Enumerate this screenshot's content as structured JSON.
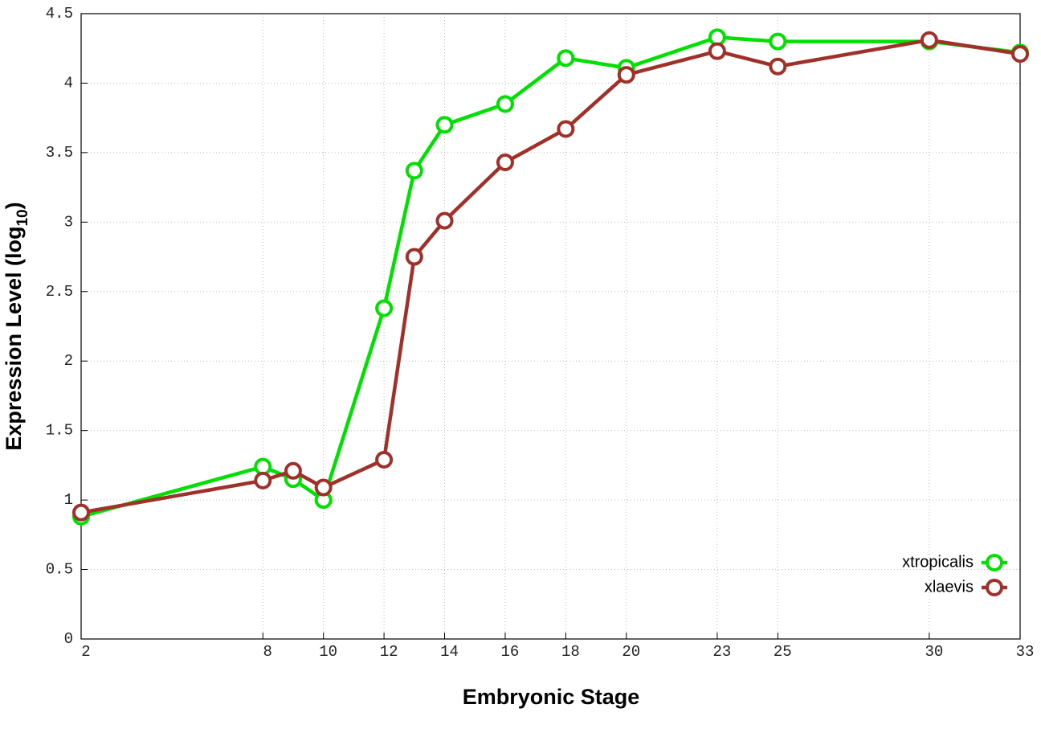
{
  "chart_data": {
    "type": "line",
    "xlabel": "Embryonic Stage",
    "ylabel": [
      "Expression Level (log",
      "10",
      ")"
    ],
    "x": [
      2,
      8,
      9,
      10,
      12,
      13,
      14,
      16,
      18,
      20,
      23,
      25,
      30,
      33
    ],
    "series": [
      {
        "name": "xtropicalis",
        "color": "#00e000",
        "values": [
          0.88,
          1.24,
          1.15,
          1.0,
          2.38,
          3.37,
          3.7,
          3.85,
          4.18,
          4.11,
          4.33,
          4.3,
          4.3,
          4.22
        ]
      },
      {
        "name": "xlaevis",
        "color": "#a0302a",
        "values": [
          0.91,
          1.14,
          1.21,
          1.09,
          1.29,
          2.75,
          3.01,
          3.43,
          3.67,
          4.06,
          4.23,
          4.12,
          4.31,
          4.21
        ]
      }
    ],
    "xlim": [
      2,
      33
    ],
    "xticks": [
      2,
      8,
      10,
      12,
      14,
      16,
      18,
      20,
      23,
      25,
      30,
      33
    ],
    "ylim": [
      0,
      4.5
    ],
    "yticks": [
      0,
      0.5,
      1,
      1.5,
      2,
      2.5,
      3,
      3.5,
      4,
      4.5
    ],
    "grid": true,
    "legend": "bottom-right"
  }
}
